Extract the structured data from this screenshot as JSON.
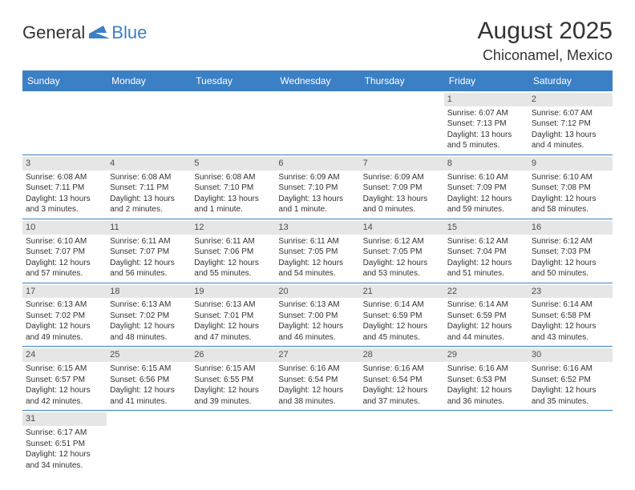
{
  "logo": {
    "text1": "General",
    "text2": "Blue"
  },
  "title": "August 2025",
  "location": "Chiconamel, Mexico",
  "colors": {
    "header_bg": "#3b7fc4",
    "header_fg": "#ffffff",
    "daynum_bg": "#e6e6e6",
    "text": "#333333",
    "row_border": "#3b7fc4"
  },
  "day_headers": [
    "Sunday",
    "Monday",
    "Tuesday",
    "Wednesday",
    "Thursday",
    "Friday",
    "Saturday"
  ],
  "weeks": [
    [
      {
        "n": "",
        "sr": "",
        "ss": "",
        "d1": "",
        "d2": ""
      },
      {
        "n": "",
        "sr": "",
        "ss": "",
        "d1": "",
        "d2": ""
      },
      {
        "n": "",
        "sr": "",
        "ss": "",
        "d1": "",
        "d2": ""
      },
      {
        "n": "",
        "sr": "",
        "ss": "",
        "d1": "",
        "d2": ""
      },
      {
        "n": "",
        "sr": "",
        "ss": "",
        "d1": "",
        "d2": ""
      },
      {
        "n": "1",
        "sr": "Sunrise: 6:07 AM",
        "ss": "Sunset: 7:13 PM",
        "d1": "Daylight: 13 hours",
        "d2": "and 5 minutes."
      },
      {
        "n": "2",
        "sr": "Sunrise: 6:07 AM",
        "ss": "Sunset: 7:12 PM",
        "d1": "Daylight: 13 hours",
        "d2": "and 4 minutes."
      }
    ],
    [
      {
        "n": "3",
        "sr": "Sunrise: 6:08 AM",
        "ss": "Sunset: 7:11 PM",
        "d1": "Daylight: 13 hours",
        "d2": "and 3 minutes."
      },
      {
        "n": "4",
        "sr": "Sunrise: 6:08 AM",
        "ss": "Sunset: 7:11 PM",
        "d1": "Daylight: 13 hours",
        "d2": "and 2 minutes."
      },
      {
        "n": "5",
        "sr": "Sunrise: 6:08 AM",
        "ss": "Sunset: 7:10 PM",
        "d1": "Daylight: 13 hours",
        "d2": "and 1 minute."
      },
      {
        "n": "6",
        "sr": "Sunrise: 6:09 AM",
        "ss": "Sunset: 7:10 PM",
        "d1": "Daylight: 13 hours",
        "d2": "and 1 minute."
      },
      {
        "n": "7",
        "sr": "Sunrise: 6:09 AM",
        "ss": "Sunset: 7:09 PM",
        "d1": "Daylight: 13 hours",
        "d2": "and 0 minutes."
      },
      {
        "n": "8",
        "sr": "Sunrise: 6:10 AM",
        "ss": "Sunset: 7:09 PM",
        "d1": "Daylight: 12 hours",
        "d2": "and 59 minutes."
      },
      {
        "n": "9",
        "sr": "Sunrise: 6:10 AM",
        "ss": "Sunset: 7:08 PM",
        "d1": "Daylight: 12 hours",
        "d2": "and 58 minutes."
      }
    ],
    [
      {
        "n": "10",
        "sr": "Sunrise: 6:10 AM",
        "ss": "Sunset: 7:07 PM",
        "d1": "Daylight: 12 hours",
        "d2": "and 57 minutes."
      },
      {
        "n": "11",
        "sr": "Sunrise: 6:11 AM",
        "ss": "Sunset: 7:07 PM",
        "d1": "Daylight: 12 hours",
        "d2": "and 56 minutes."
      },
      {
        "n": "12",
        "sr": "Sunrise: 6:11 AM",
        "ss": "Sunset: 7:06 PM",
        "d1": "Daylight: 12 hours",
        "d2": "and 55 minutes."
      },
      {
        "n": "13",
        "sr": "Sunrise: 6:11 AM",
        "ss": "Sunset: 7:05 PM",
        "d1": "Daylight: 12 hours",
        "d2": "and 54 minutes."
      },
      {
        "n": "14",
        "sr": "Sunrise: 6:12 AM",
        "ss": "Sunset: 7:05 PM",
        "d1": "Daylight: 12 hours",
        "d2": "and 53 minutes."
      },
      {
        "n": "15",
        "sr": "Sunrise: 6:12 AM",
        "ss": "Sunset: 7:04 PM",
        "d1": "Daylight: 12 hours",
        "d2": "and 51 minutes."
      },
      {
        "n": "16",
        "sr": "Sunrise: 6:12 AM",
        "ss": "Sunset: 7:03 PM",
        "d1": "Daylight: 12 hours",
        "d2": "and 50 minutes."
      }
    ],
    [
      {
        "n": "17",
        "sr": "Sunrise: 6:13 AM",
        "ss": "Sunset: 7:02 PM",
        "d1": "Daylight: 12 hours",
        "d2": "and 49 minutes."
      },
      {
        "n": "18",
        "sr": "Sunrise: 6:13 AM",
        "ss": "Sunset: 7:02 PM",
        "d1": "Daylight: 12 hours",
        "d2": "and 48 minutes."
      },
      {
        "n": "19",
        "sr": "Sunrise: 6:13 AM",
        "ss": "Sunset: 7:01 PM",
        "d1": "Daylight: 12 hours",
        "d2": "and 47 minutes."
      },
      {
        "n": "20",
        "sr": "Sunrise: 6:13 AM",
        "ss": "Sunset: 7:00 PM",
        "d1": "Daylight: 12 hours",
        "d2": "and 46 minutes."
      },
      {
        "n": "21",
        "sr": "Sunrise: 6:14 AM",
        "ss": "Sunset: 6:59 PM",
        "d1": "Daylight: 12 hours",
        "d2": "and 45 minutes."
      },
      {
        "n": "22",
        "sr": "Sunrise: 6:14 AM",
        "ss": "Sunset: 6:59 PM",
        "d1": "Daylight: 12 hours",
        "d2": "and 44 minutes."
      },
      {
        "n": "23",
        "sr": "Sunrise: 6:14 AM",
        "ss": "Sunset: 6:58 PM",
        "d1": "Daylight: 12 hours",
        "d2": "and 43 minutes."
      }
    ],
    [
      {
        "n": "24",
        "sr": "Sunrise: 6:15 AM",
        "ss": "Sunset: 6:57 PM",
        "d1": "Daylight: 12 hours",
        "d2": "and 42 minutes."
      },
      {
        "n": "25",
        "sr": "Sunrise: 6:15 AM",
        "ss": "Sunset: 6:56 PM",
        "d1": "Daylight: 12 hours",
        "d2": "and 41 minutes."
      },
      {
        "n": "26",
        "sr": "Sunrise: 6:15 AM",
        "ss": "Sunset: 6:55 PM",
        "d1": "Daylight: 12 hours",
        "d2": "and 39 minutes."
      },
      {
        "n": "27",
        "sr": "Sunrise: 6:16 AM",
        "ss": "Sunset: 6:54 PM",
        "d1": "Daylight: 12 hours",
        "d2": "and 38 minutes."
      },
      {
        "n": "28",
        "sr": "Sunrise: 6:16 AM",
        "ss": "Sunset: 6:54 PM",
        "d1": "Daylight: 12 hours",
        "d2": "and 37 minutes."
      },
      {
        "n": "29",
        "sr": "Sunrise: 6:16 AM",
        "ss": "Sunset: 6:53 PM",
        "d1": "Daylight: 12 hours",
        "d2": "and 36 minutes."
      },
      {
        "n": "30",
        "sr": "Sunrise: 6:16 AM",
        "ss": "Sunset: 6:52 PM",
        "d1": "Daylight: 12 hours",
        "d2": "and 35 minutes."
      }
    ],
    [
      {
        "n": "31",
        "sr": "Sunrise: 6:17 AM",
        "ss": "Sunset: 6:51 PM",
        "d1": "Daylight: 12 hours",
        "d2": "and 34 minutes."
      },
      {
        "n": "",
        "sr": "",
        "ss": "",
        "d1": "",
        "d2": ""
      },
      {
        "n": "",
        "sr": "",
        "ss": "",
        "d1": "",
        "d2": ""
      },
      {
        "n": "",
        "sr": "",
        "ss": "",
        "d1": "",
        "d2": ""
      },
      {
        "n": "",
        "sr": "",
        "ss": "",
        "d1": "",
        "d2": ""
      },
      {
        "n": "",
        "sr": "",
        "ss": "",
        "d1": "",
        "d2": ""
      },
      {
        "n": "",
        "sr": "",
        "ss": "",
        "d1": "",
        "d2": ""
      }
    ]
  ]
}
